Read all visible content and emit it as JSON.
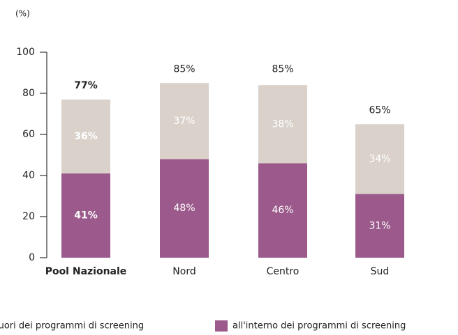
{
  "chart_data": {
    "type": "stacked_bar",
    "y_axis_label": "(%)",
    "categories": [
      "Pool Nazionale",
      "Nord",
      "Centro",
      "Sud"
    ],
    "series": [
      {
        "name": "all'interno dei programmi di screening",
        "color": "#9b5a8b",
        "values": [
          41,
          48,
          46,
          31
        ],
        "value_labels": [
          "41%",
          "48%",
          "46%",
          "31%"
        ]
      },
      {
        "name": "fuori dei programmi di screening",
        "color": "#d9d1ca",
        "values": [
          36,
          37,
          38,
          34
        ],
        "value_labels": [
          "36%",
          "37%",
          "38%",
          "34%"
        ]
      }
    ],
    "totals": [
      77,
      85,
      85,
      65
    ],
    "total_labels": [
      "77%",
      "85%",
      "85%",
      "65%"
    ],
    "ylim": [
      0,
      100
    ],
    "yticks": [
      0,
      20,
      40,
      60,
      80,
      100
    ]
  }
}
